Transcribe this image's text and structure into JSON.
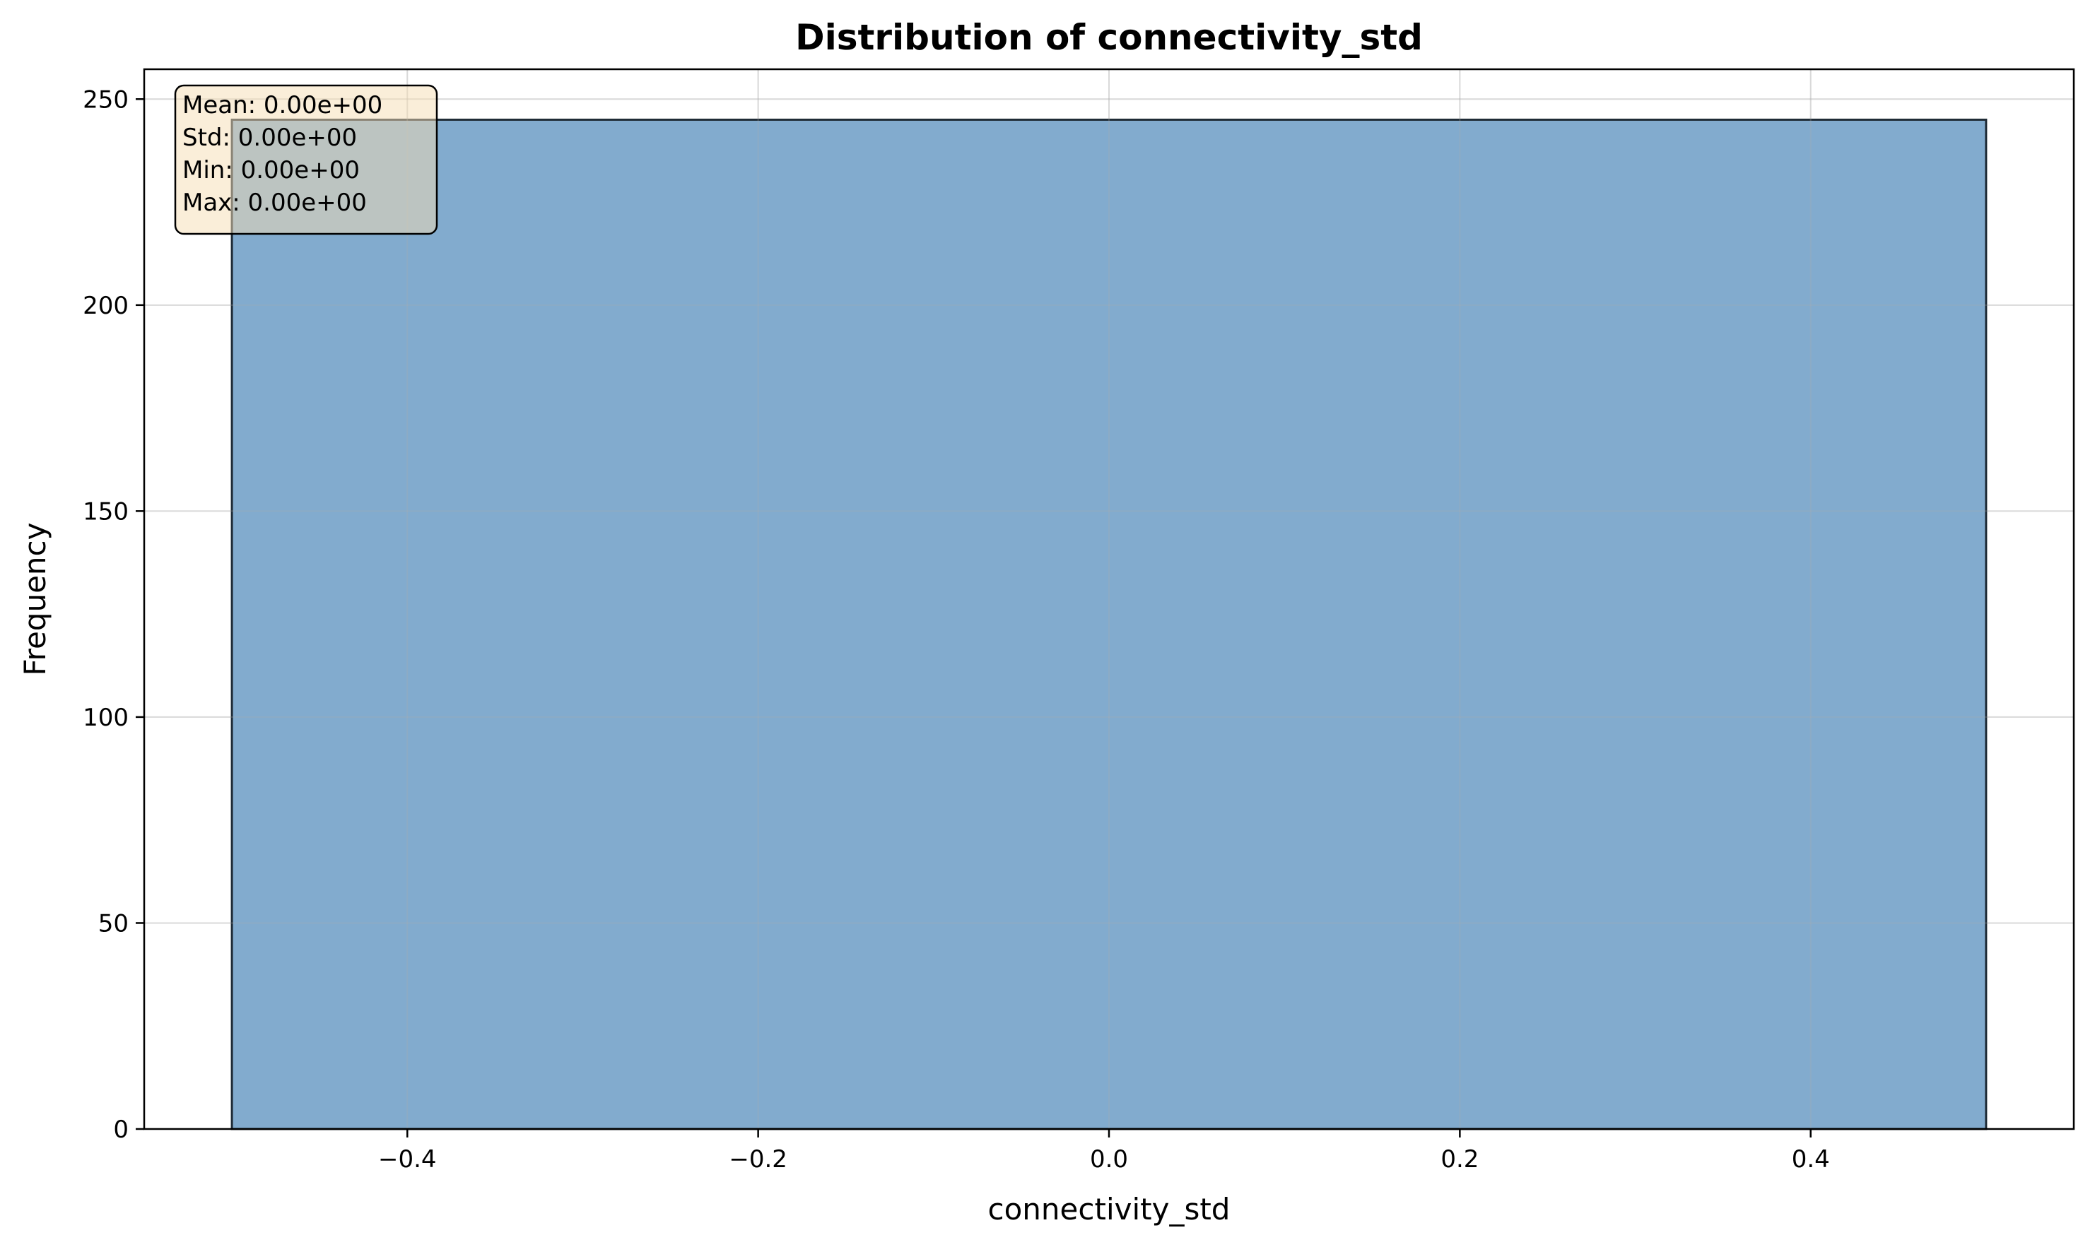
{
  "chart_data": {
    "type": "bar",
    "title": "Distribution of connectivity_std",
    "xlabel": "connectivity_std",
    "ylabel": "Frequency",
    "xlim": [
      -0.55,
      0.55
    ],
    "ylim": [
      0,
      257.25
    ],
    "xticks": [
      {
        "value": -0.4,
        "label": "−0.4"
      },
      {
        "value": -0.2,
        "label": "−0.2"
      },
      {
        "value": 0.0,
        "label": "0.0"
      },
      {
        "value": 0.2,
        "label": "0.2"
      },
      {
        "value": 0.4,
        "label": "0.4"
      }
    ],
    "yticks": [
      {
        "value": 0,
        "label": "0"
      },
      {
        "value": 50,
        "label": "50"
      },
      {
        "value": 100,
        "label": "100"
      },
      {
        "value": 150,
        "label": "150"
      },
      {
        "value": 200,
        "label": "200"
      },
      {
        "value": 250,
        "label": "250"
      }
    ],
    "bins": [
      {
        "x0": -0.5,
        "x1": 0.5,
        "value": 245
      }
    ],
    "grid": true,
    "bar_color": "#7ba7cb",
    "bar_edge_color": "#1f2b36",
    "stats_box": {
      "placement": "top-left",
      "background": "#f5deb3",
      "lines": [
        "Mean: 0.00e+00",
        "Std: 0.00e+00",
        "Min: 0.00e+00",
        "Max: 0.00e+00"
      ]
    }
  }
}
